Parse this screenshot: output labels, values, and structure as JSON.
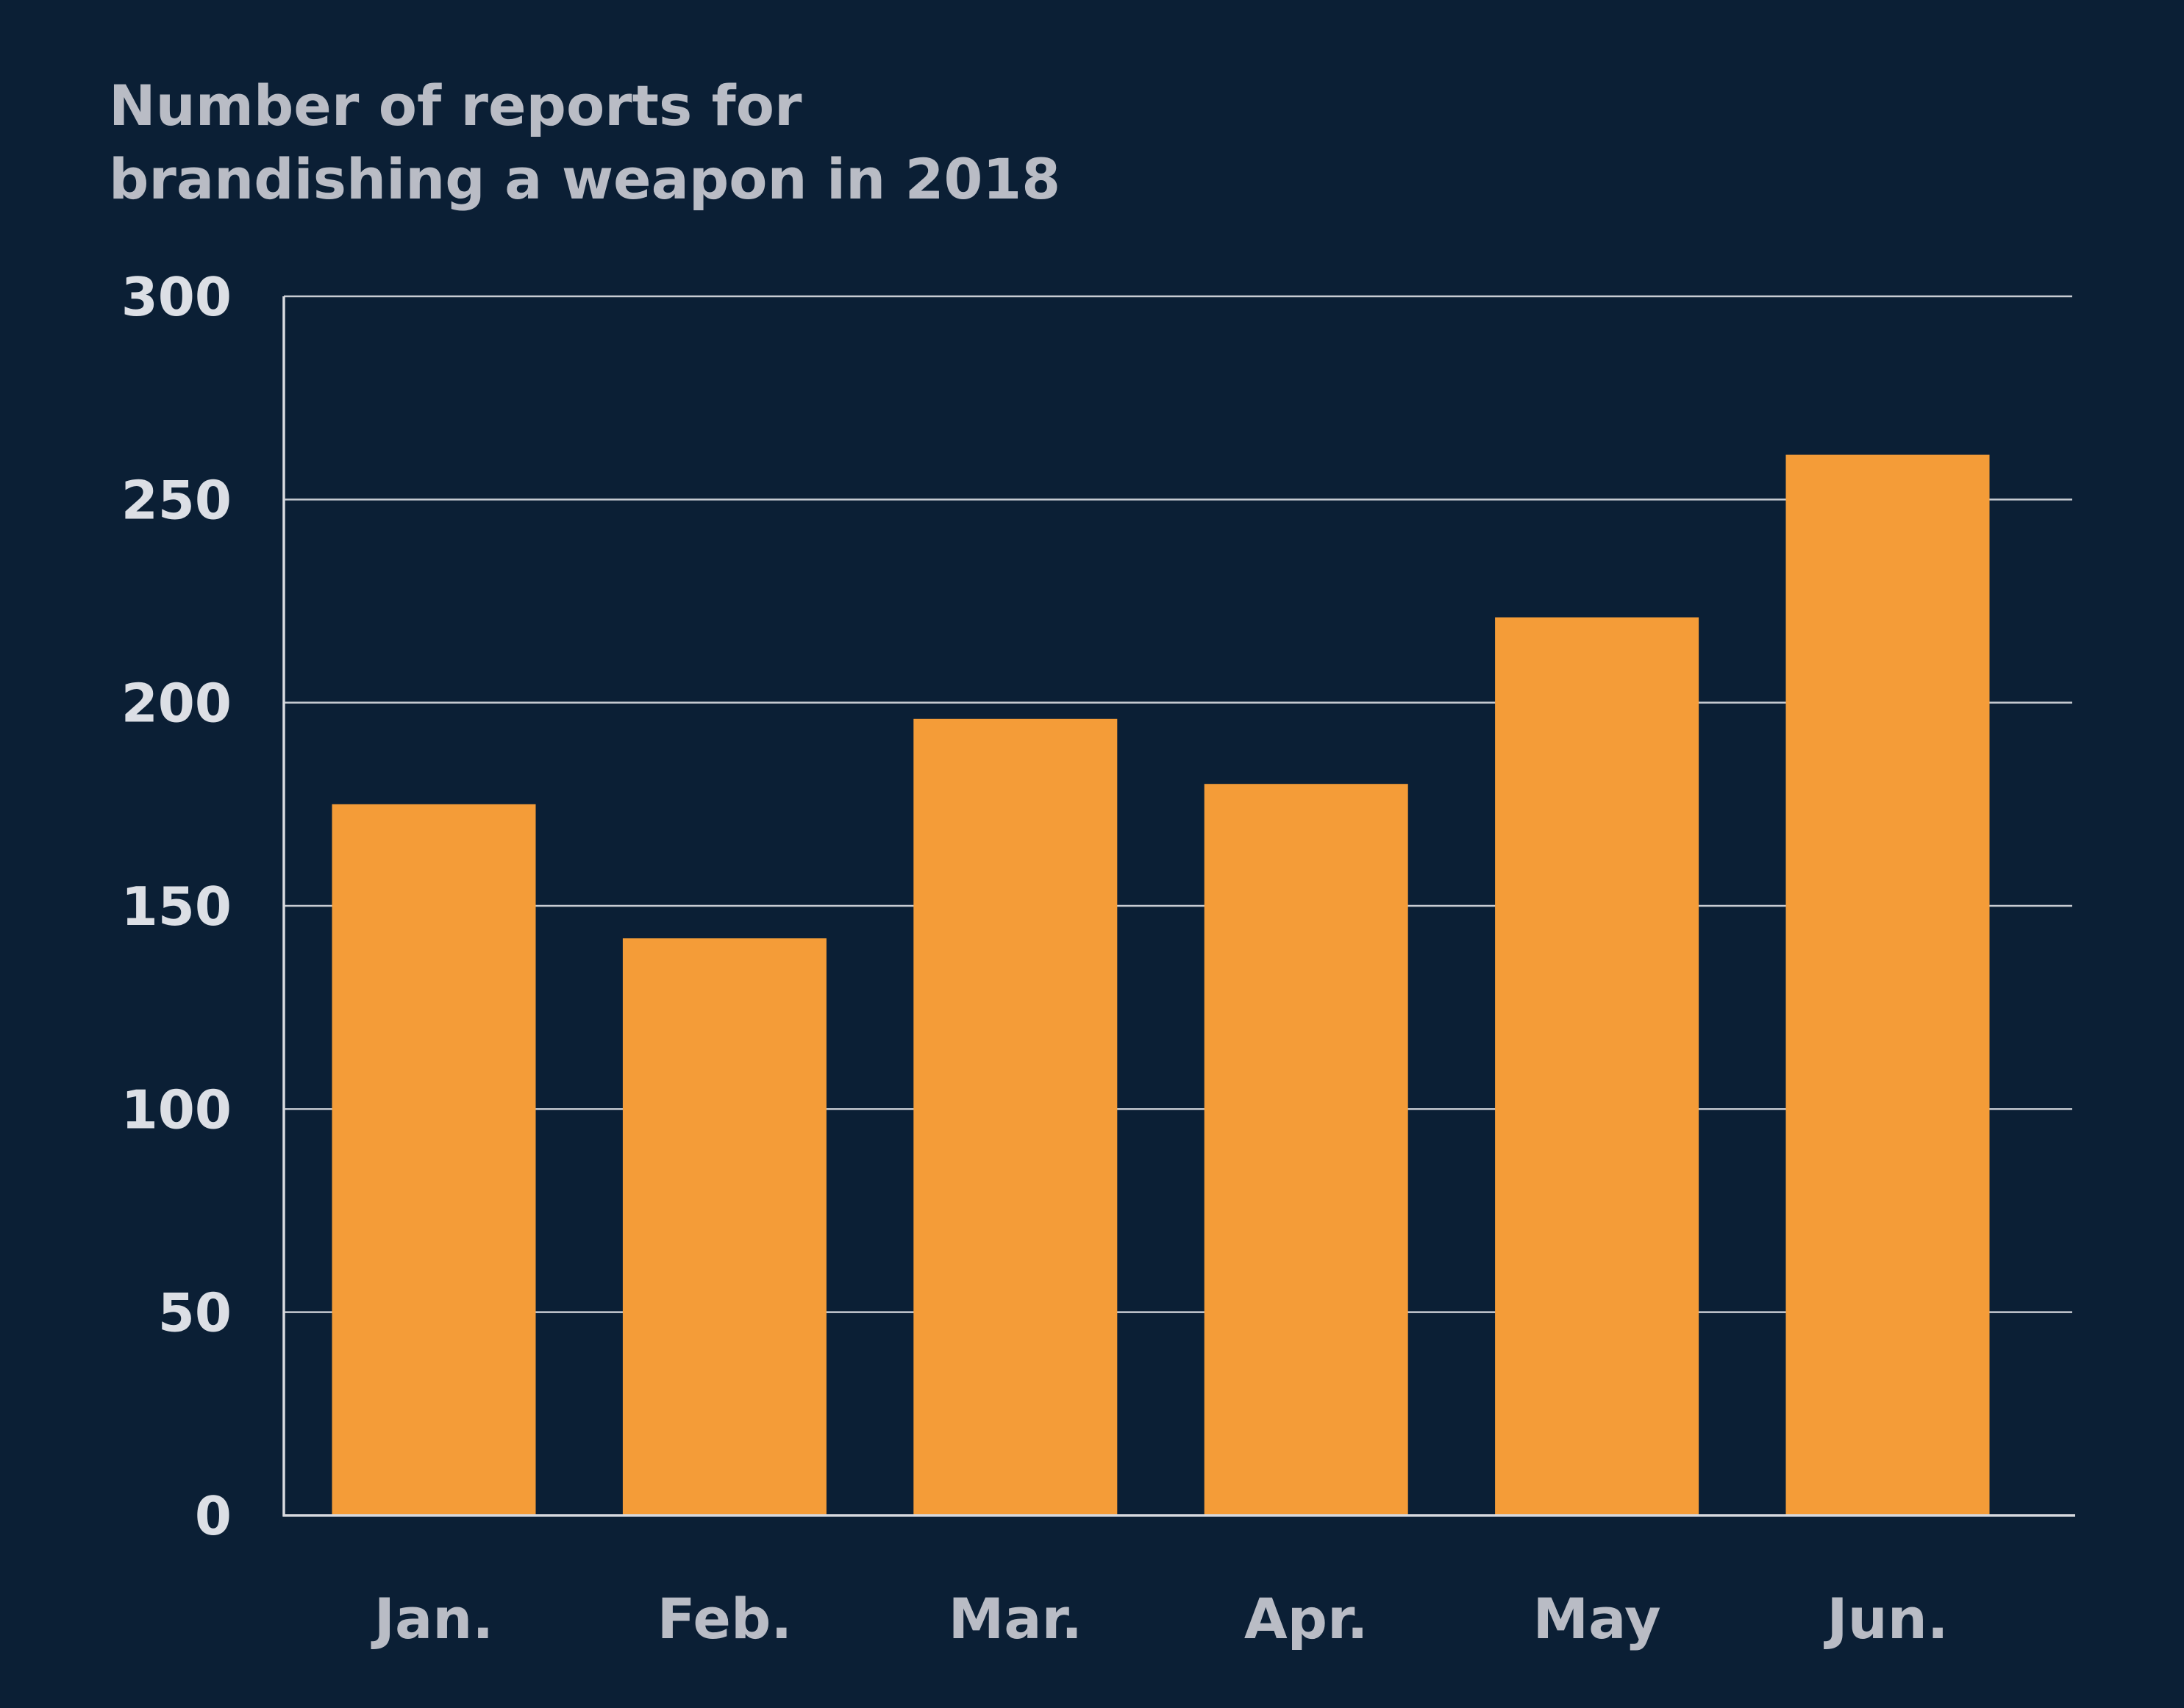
{
  "chart_data": {
    "type": "bar",
    "title": [
      "Number of reports for",
      "brandishing a weapon in 2018"
    ],
    "categories": [
      "Jan.",
      "Feb.",
      "Mar.",
      "Apr.",
      "May",
      "Jun."
    ],
    "values": [
      175,
      142,
      196,
      180,
      221,
      261
    ],
    "ylim": [
      0,
      300
    ],
    "yticks": [
      "0",
      "50",
      "100",
      "150",
      "200",
      "250",
      "300"
    ],
    "grid": true,
    "legend": "none",
    "colors": {
      "background": "#0b1f35",
      "bar": "#f49c38",
      "grid": "#c9ccd3",
      "title": "#b9bcc5",
      "ytick": "#dcdfe5",
      "xtick": "#b9bcc5"
    }
  }
}
